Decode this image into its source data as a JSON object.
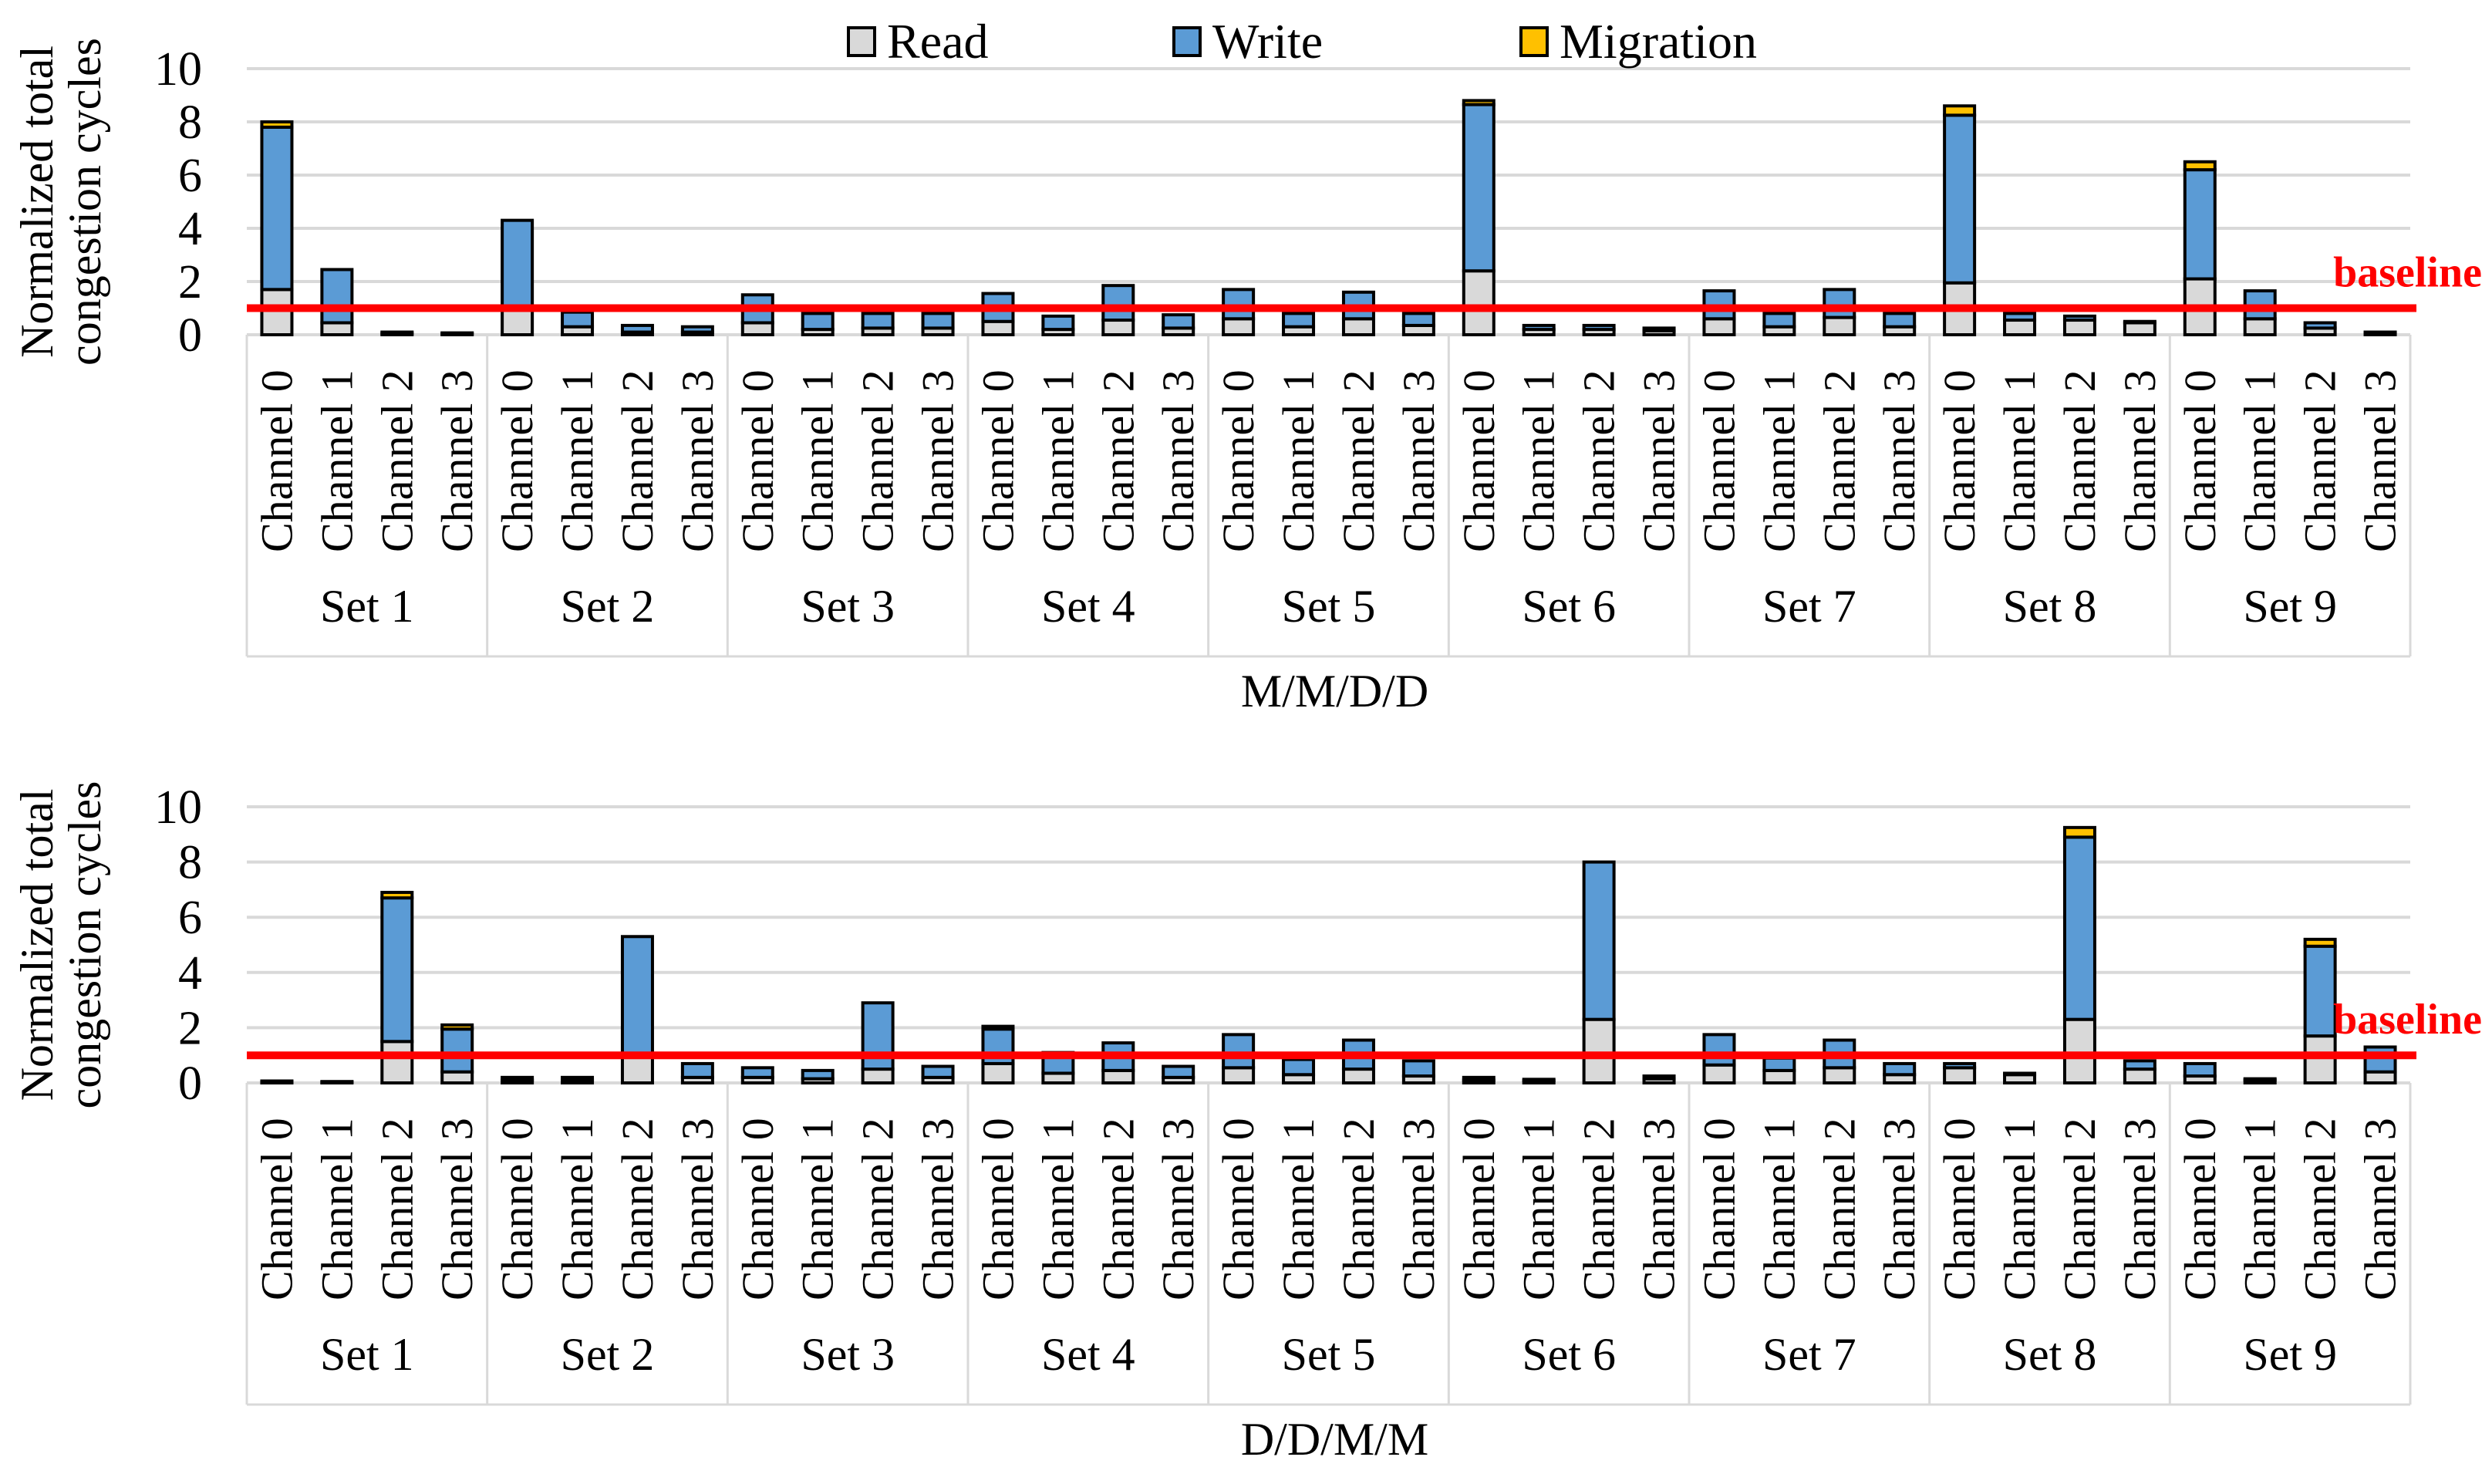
{
  "page": {
    "background": "#FFFFFF"
  },
  "legend": [
    {
      "label": "Read",
      "color": "#D9D9D9"
    },
    {
      "label": "Write",
      "color": "#5B9BD5"
    },
    {
      "label": "Migration",
      "color": "#FFC000"
    }
  ],
  "colors": {
    "read": "#D9D9D9",
    "write": "#5B9BD5",
    "migration": "#FFC000",
    "bar_border": "#000000",
    "grid": "#D9D9D9",
    "baseline": "#FF0000",
    "text": "#000000"
  },
  "chart_data": [
    {
      "type": "bar",
      "stacked": true,
      "title": "M/M/D/D",
      "ylabel_lines": [
        "Normalized total",
        "congestion cycles"
      ],
      "ylim": [
        0,
        10
      ],
      "yticks": [
        0,
        2,
        4,
        6,
        8,
        10
      ],
      "grid": true,
      "legend_position": "top",
      "baseline": {
        "value": 1,
        "label": "baseline"
      },
      "groups": [
        "Set 1",
        "Set 2",
        "Set 3",
        "Set 4",
        "Set 5",
        "Set 6",
        "Set 7",
        "Set 8",
        "Set 9"
      ],
      "categories": [
        "Channel 0",
        "Channel 1",
        "Channel 2",
        "Channel 3"
      ],
      "series": [
        {
          "name": "Read",
          "key": "read",
          "values": [
            [
              1.7,
              0.45,
              0.05,
              0.04
            ],
            [
              1.0,
              0.3,
              0.1,
              0.1
            ],
            [
              0.45,
              0.2,
              0.25,
              0.25
            ],
            [
              0.5,
              0.2,
              0.55,
              0.25
            ],
            [
              0.6,
              0.3,
              0.6,
              0.35
            ],
            [
              2.4,
              0.2,
              0.2,
              0.15
            ],
            [
              0.6,
              0.3,
              0.65,
              0.3
            ],
            [
              1.95,
              0.55,
              0.55,
              0.45
            ],
            [
              2.1,
              0.6,
              0.25,
              0.05
            ]
          ]
        },
        {
          "name": "Write",
          "key": "write",
          "values": [
            [
              6.1,
              2.0,
              0.05,
              0.03
            ],
            [
              3.3,
              0.55,
              0.25,
              0.2
            ],
            [
              1.05,
              0.6,
              0.55,
              0.55
            ],
            [
              1.05,
              0.5,
              1.3,
              0.5
            ],
            [
              1.1,
              0.5,
              1.0,
              0.45
            ],
            [
              6.25,
              0.15,
              0.15,
              0.1
            ],
            [
              1.05,
              0.5,
              1.05,
              0.5
            ],
            [
              6.3,
              0.25,
              0.15,
              0.05
            ],
            [
              4.1,
              1.05,
              0.2,
              0.05
            ]
          ]
        },
        {
          "name": "Migration",
          "key": "migration",
          "values": [
            [
              0.2,
              0,
              0,
              0
            ],
            [
              0,
              0,
              0,
              0
            ],
            [
              0,
              0,
              0,
              0
            ],
            [
              0,
              0,
              0,
              0
            ],
            [
              0,
              0,
              0,
              0
            ],
            [
              0.15,
              0,
              0,
              0
            ],
            [
              0,
              0,
              0,
              0
            ],
            [
              0.35,
              0,
              0,
              0
            ],
            [
              0.3,
              0,
              0,
              0
            ]
          ]
        }
      ]
    },
    {
      "type": "bar",
      "stacked": true,
      "title": "D/D/M/M",
      "ylabel_lines": [
        "Normalized total",
        "congestion cycles"
      ],
      "ylim": [
        0,
        10
      ],
      "yticks": [
        0,
        2,
        4,
        6,
        8,
        10
      ],
      "grid": true,
      "legend_position": "none",
      "baseline": {
        "value": 1,
        "label": "baseline"
      },
      "groups": [
        "Set 1",
        "Set 2",
        "Set 3",
        "Set 4",
        "Set 5",
        "Set 6",
        "Set 7",
        "Set 8",
        "Set 9"
      ],
      "categories": [
        "Channel 0",
        "Channel 1",
        "Channel 2",
        "Channel 3"
      ],
      "series": [
        {
          "name": "Read",
          "key": "read",
          "values": [
            [
              0.04,
              0.03,
              1.5,
              0.4
            ],
            [
              0.1,
              0.1,
              1.0,
              0.2
            ],
            [
              0.2,
              0.15,
              0.5,
              0.2
            ],
            [
              0.7,
              0.35,
              0.45,
              0.2
            ],
            [
              0.55,
              0.3,
              0.5,
              0.25
            ],
            [
              0.1,
              0.08,
              2.3,
              0.15
            ],
            [
              0.65,
              0.45,
              0.55,
              0.3
            ],
            [
              0.55,
              0.3,
              2.3,
              0.5
            ],
            [
              0.25,
              0.1,
              1.7,
              0.4
            ]
          ]
        },
        {
          "name": "Write",
          "key": "write",
          "values": [
            [
              0.03,
              0.02,
              5.2,
              1.55
            ],
            [
              0.1,
              0.1,
              4.3,
              0.5
            ],
            [
              0.35,
              0.3,
              2.4,
              0.4
            ],
            [
              1.25,
              0.75,
              1.0,
              0.4
            ],
            [
              1.2,
              0.55,
              1.05,
              0.55
            ],
            [
              0.1,
              0.05,
              5.7,
              0.1
            ],
            [
              1.1,
              0.45,
              1.0,
              0.4
            ],
            [
              0.15,
              0.05,
              6.6,
              0.3
            ],
            [
              0.45,
              0.05,
              3.25,
              0.9
            ]
          ]
        },
        {
          "name": "Migration",
          "key": "migration",
          "values": [
            [
              0,
              0,
              0.2,
              0.15
            ],
            [
              0,
              0,
              0,
              0
            ],
            [
              0,
              0,
              0,
              0
            ],
            [
              0.1,
              0,
              0,
              0
            ],
            [
              0,
              0,
              0,
              0
            ],
            [
              0,
              0,
              0,
              0
            ],
            [
              0,
              0,
              0,
              0
            ],
            [
              0,
              0,
              0.35,
              0
            ],
            [
              0,
              0,
              0.25,
              0
            ]
          ]
        }
      ]
    }
  ]
}
